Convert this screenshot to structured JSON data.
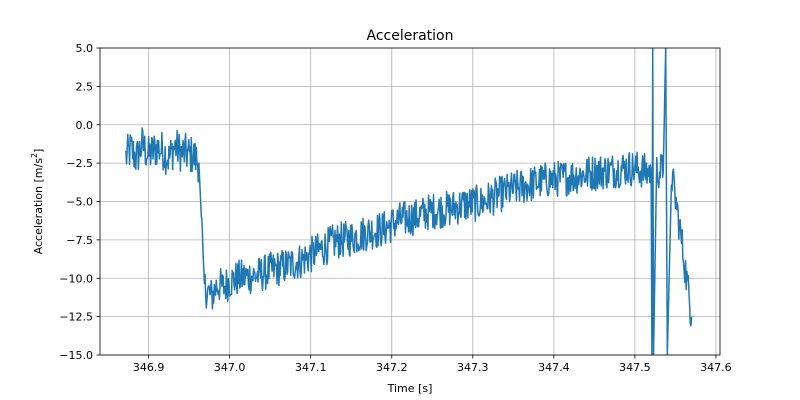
{
  "chart_data": {
    "type": "line",
    "title": "Acceleration",
    "xlabel": "Time [s]",
    "ylabel_main": "Acceleration [m/s",
    "ylabel_sup": "2",
    "ylabel_close": "]",
    "xlim": [
      346.84,
      347.605
    ],
    "ylim": [
      -15.0,
      5.0
    ],
    "x_ticks": [
      346.9,
      347.0,
      347.1,
      347.2,
      347.3,
      347.4,
      347.5,
      347.6
    ],
    "x_tick_labels": [
      "346.9",
      "347.0",
      "347.1",
      "347.2",
      "347.3",
      "347.4",
      "347.5",
      "347.6"
    ],
    "y_ticks": [
      5.0,
      2.5,
      0.0,
      -2.5,
      -5.0,
      -7.5,
      -10.0,
      -12.5,
      -15.0
    ],
    "y_tick_labels": [
      "5.0",
      "2.5",
      "0.0",
      "−2.5",
      "−5.0",
      "−7.5",
      "−10.0",
      "−12.5",
      "−15.0"
    ],
    "grid": true,
    "series": [
      {
        "color": "#1f77b4",
        "x": [
          346.872,
          346.878,
          346.885,
          346.892,
          346.9,
          346.91,
          346.918,
          346.925,
          346.932,
          346.94,
          346.948,
          346.955,
          346.962,
          346.965,
          346.968,
          346.972,
          346.978,
          346.985,
          346.992,
          347.0,
          347.01,
          347.02,
          347.035,
          347.05,
          347.07,
          347.09,
          347.11,
          347.13,
          347.15,
          347.17,
          347.19,
          347.21,
          347.23,
          347.25,
          347.27,
          347.29,
          347.31,
          347.33,
          347.35,
          347.37,
          347.39,
          347.41,
          347.43,
          347.45,
          347.47,
          347.49,
          347.505,
          347.515,
          347.52,
          347.521,
          347.522,
          347.523,
          347.527,
          347.532,
          347.535,
          347.538,
          347.54,
          347.545,
          347.55,
          347.555,
          347.56,
          347.565,
          347.57
        ],
        "y": [
          -2.1,
          -1.6,
          -2.2,
          -1.3,
          -2.0,
          -1.5,
          -1.7,
          -2.2,
          -1.4,
          -1.8,
          -1.9,
          -2.0,
          -2.5,
          -5.5,
          -10.5,
          -10.8,
          -11.2,
          -10.4,
          -10.6,
          -10.2,
          -10.0,
          -9.9,
          -9.8,
          -9.5,
          -9.2,
          -8.8,
          -8.2,
          -7.6,
          -7.4,
          -7.0,
          -6.8,
          -6.2,
          -6.0,
          -5.6,
          -5.5,
          -5.2,
          -5.1,
          -4.6,
          -4.2,
          -3.9,
          -3.6,
          -3.5,
          -3.3,
          -3.1,
          -3.0,
          -2.8,
          -2.9,
          -3.1,
          -3.0,
          -15.0,
          5.0,
          -15.0,
          -3.0,
          -3.0,
          -3.0,
          5.0,
          -15.0,
          -3.2,
          -4.8,
          -6.6,
          -8.5,
          -10.5,
          -12.5
        ]
      }
    ]
  }
}
